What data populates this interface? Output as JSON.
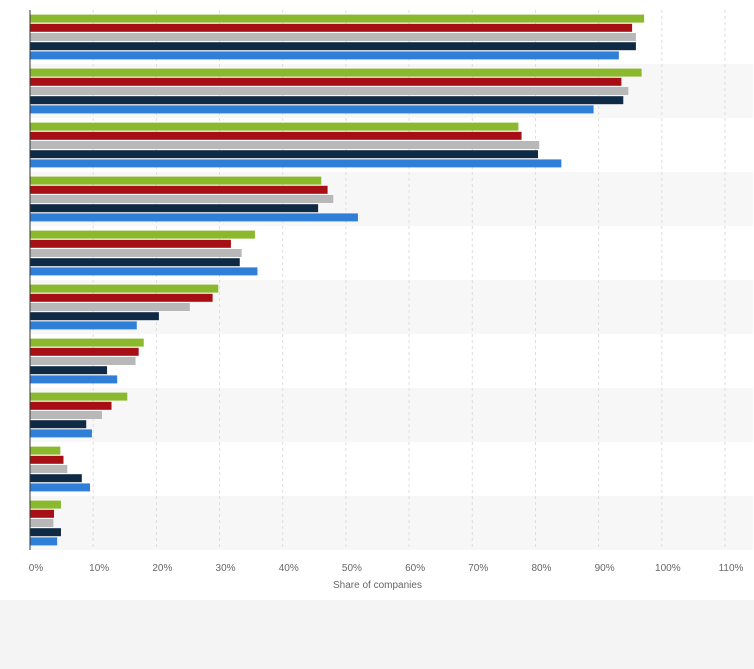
{
  "chart_data": {
    "type": "bar",
    "orientation": "horizontal",
    "title": "",
    "xlabel": "Share of companies",
    "ylabel": "",
    "xlim": [
      0,
      110
    ],
    "x_ticks": [
      0,
      10,
      20,
      30,
      40,
      50,
      60,
      70,
      80,
      90,
      100,
      110
    ],
    "x_tick_labels": [
      "0%",
      "10%",
      "20%",
      "30%",
      "40%",
      "50%",
      "60%",
      "70%",
      "80%",
      "90%",
      "100%",
      "110%"
    ],
    "grid": true,
    "legend": "none",
    "categories": [
      "",
      "",
      "",
      "",
      "",
      "",
      "",
      "",
      "",
      ""
    ],
    "series": [
      {
        "color": "#8ab92d",
        "values": [
          97.2,
          96.8,
          77.3,
          46.1,
          35.6,
          29.8,
          18.0,
          15.4,
          4.8,
          4.9
        ]
      },
      {
        "color": "#a50f15",
        "values": [
          95.3,
          93.6,
          77.8,
          47.1,
          31.8,
          28.9,
          17.2,
          12.9,
          5.3,
          3.8
        ]
      },
      {
        "color": "#b8b8b8",
        "values": [
          95.9,
          94.7,
          80.6,
          48.0,
          33.5,
          25.3,
          16.7,
          11.4,
          5.9,
          3.7
        ]
      },
      {
        "color": "#0f2a45",
        "values": [
          95.9,
          93.9,
          80.4,
          45.6,
          33.2,
          20.4,
          12.2,
          8.9,
          8.2,
          4.9
        ]
      },
      {
        "color": "#2f7ed8",
        "values": [
          93.2,
          89.2,
          84.1,
          51.9,
          36.0,
          16.9,
          13.8,
          9.8,
          9.5,
          4.3
        ]
      }
    ]
  }
}
